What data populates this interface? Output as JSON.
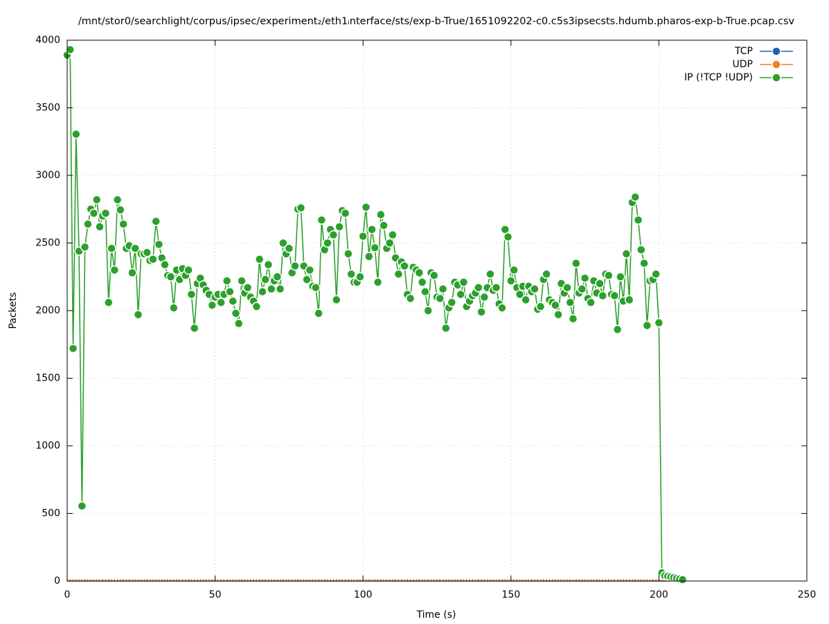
{
  "chart_data": {
    "type": "line",
    "title": "/mnt/stor0/searchlight/corpus/ipsec/experiment₂/eth1ᵢnterface/sts/exp-b-True/1651092202-c0.c5s3ipsecsts.hdumb.pharos-exp-b-True.pcap.csv",
    "x_label": "Time (s)",
    "y_label": "Packets",
    "xlim": [
      0,
      250
    ],
    "xticks": [
      0,
      50,
      100,
      150,
      200,
      250
    ],
    "ylim": [
      0,
      4000
    ],
    "yticks": [
      0,
      500,
      1000,
      1500,
      2000,
      2500,
      3000,
      3500,
      4000
    ],
    "grid": true,
    "legend": "top-right",
    "x": [
      0,
      1,
      2,
      3,
      4,
      5,
      6,
      7,
      8,
      9,
      10,
      11,
      12,
      13,
      14,
      15,
      16,
      17,
      18,
      19,
      20,
      21,
      22,
      23,
      24,
      25,
      26,
      27,
      28,
      29,
      30,
      31,
      32,
      33,
      34,
      35,
      36,
      37,
      38,
      39,
      40,
      41,
      42,
      43,
      44,
      45,
      46,
      47,
      48,
      49,
      50,
      51,
      52,
      53,
      54,
      55,
      56,
      57,
      58,
      59,
      60,
      61,
      62,
      63,
      64,
      65,
      66,
      67,
      68,
      69,
      70,
      71,
      72,
      73,
      74,
      75,
      76,
      77,
      78,
      79,
      80,
      81,
      82,
      83,
      84,
      85,
      86,
      87,
      88,
      89,
      90,
      91,
      92,
      93,
      94,
      95,
      96,
      97,
      98,
      99,
      100,
      101,
      102,
      103,
      104,
      105,
      106,
      107,
      108,
      109,
      110,
      111,
      112,
      113,
      114,
      115,
      116,
      117,
      118,
      119,
      120,
      121,
      122,
      123,
      124,
      125,
      126,
      127,
      128,
      129,
      130,
      131,
      132,
      133,
      134,
      135,
      136,
      137,
      138,
      139,
      140,
      141,
      142,
      143,
      144,
      145,
      146,
      147,
      148,
      149,
      150,
      151,
      152,
      153,
      154,
      155,
      156,
      157,
      158,
      159,
      160,
      161,
      162,
      163,
      164,
      165,
      166,
      167,
      168,
      169,
      170,
      171,
      172,
      173,
      174,
      175,
      176,
      177,
      178,
      179,
      180,
      181,
      182,
      183,
      184,
      185,
      186,
      187,
      188,
      189,
      190,
      191,
      192,
      193,
      194,
      195,
      196,
      197,
      198,
      199,
      200,
      201,
      202,
      203,
      204,
      205,
      206,
      207,
      208
    ],
    "series": [
      {
        "name": "TCP",
        "color": "#1f63b0",
        "values": [
          0,
          0,
          0,
          0,
          0,
          0,
          0,
          0,
          0,
          0,
          0,
          0,
          0,
          0,
          0,
          0,
          0,
          0,
          0,
          0,
          0,
          0,
          0,
          0,
          0,
          0,
          0,
          0,
          0,
          0,
          0,
          0,
          0,
          0,
          0,
          0,
          0,
          0,
          0,
          0,
          0,
          0,
          0,
          0,
          0,
          0,
          0,
          0,
          0,
          0,
          0,
          0,
          0,
          0,
          0,
          0,
          0,
          0,
          0,
          0,
          0,
          0,
          0,
          0,
          0,
          0,
          0,
          0,
          0,
          0,
          0,
          0,
          0,
          0,
          0,
          0,
          0,
          0,
          0,
          0,
          0,
          0,
          0,
          0,
          0,
          0,
          0,
          0,
          0,
          0,
          0,
          0,
          0,
          0,
          0,
          0,
          0,
          0,
          0,
          0,
          0,
          0,
          0,
          0,
          0,
          0,
          0,
          0,
          0,
          0,
          0,
          0,
          0,
          0,
          0,
          0,
          0,
          0,
          0,
          0,
          0,
          0,
          0,
          0,
          0,
          0,
          0,
          0,
          0,
          0,
          0,
          0,
          0,
          0,
          0,
          0,
          0,
          0,
          0,
          0,
          0,
          0,
          0,
          0,
          0,
          0,
          0,
          0,
          0,
          0,
          0,
          0,
          0,
          0,
          0,
          0,
          0,
          0,
          0,
          0,
          0,
          0,
          0,
          0,
          0,
          0,
          0,
          0,
          0,
          0,
          0,
          0,
          0,
          0,
          0,
          0,
          0,
          0,
          0,
          0,
          0,
          0,
          0,
          0,
          0,
          0,
          0,
          0,
          0,
          0,
          0,
          0,
          0,
          0,
          0,
          0,
          0,
          0,
          0,
          0,
          0,
          0,
          0,
          0,
          0,
          0,
          0,
          0,
          0
        ]
      },
      {
        "name": "UDP",
        "color": "#f07f1e",
        "values": [
          0,
          0,
          0,
          0,
          0,
          0,
          0,
          0,
          0,
          0,
          0,
          0,
          0,
          0,
          0,
          0,
          0,
          0,
          0,
          0,
          0,
          0,
          0,
          0,
          0,
          0,
          0,
          0,
          0,
          0,
          0,
          0,
          0,
          0,
          0,
          0,
          0,
          0,
          0,
          0,
          0,
          0,
          0,
          0,
          0,
          0,
          0,
          0,
          0,
          0,
          0,
          0,
          0,
          0,
          0,
          0,
          0,
          0,
          0,
          0,
          0,
          0,
          0,
          0,
          0,
          0,
          0,
          0,
          0,
          0,
          0,
          0,
          0,
          0,
          0,
          0,
          0,
          0,
          0,
          0,
          0,
          0,
          0,
          0,
          0,
          0,
          0,
          0,
          0,
          0,
          0,
          0,
          0,
          0,
          0,
          0,
          0,
          0,
          0,
          0,
          0,
          0,
          0,
          0,
          0,
          0,
          0,
          0,
          0,
          0,
          0,
          0,
          0,
          0,
          0,
          0,
          0,
          0,
          0,
          0,
          0,
          0,
          0,
          0,
          0,
          0,
          0,
          0,
          0,
          0,
          0,
          0,
          0,
          0,
          0,
          0,
          0,
          0,
          0,
          0,
          0,
          0,
          0,
          0,
          0,
          0,
          0,
          0,
          0,
          0,
          0,
          0,
          0,
          0,
          0,
          0,
          0,
          0,
          0,
          0,
          0,
          0,
          0,
          0,
          0,
          0,
          0,
          0,
          0,
          0,
          0,
          0,
          0,
          0,
          0,
          0,
          0,
          0,
          0,
          0,
          0,
          0,
          0,
          0,
          0,
          0,
          0,
          0,
          0,
          0,
          0,
          0,
          0,
          0,
          0,
          0,
          0,
          0,
          0,
          0,
          0,
          0,
          0,
          0,
          0,
          0,
          0,
          0,
          0
        ]
      },
      {
        "name": "IP (!TCP  !UDP)",
        "color": "#2ca02c",
        "values": [
          3890,
          3930,
          1720,
          3305,
          2440,
          555,
          2470,
          2640,
          2750,
          2720,
          2820,
          2620,
          2700,
          2720,
          2060,
          2460,
          2300,
          2820,
          2745,
          2640,
          2460,
          2480,
          2280,
          2460,
          1970,
          2420,
          2420,
          2430,
          2370,
          2380,
          2660,
          2490,
          2390,
          2340,
          2260,
          2250,
          2020,
          2300,
          2230,
          2310,
          2260,
          2300,
          2120,
          1870,
          2200,
          2240,
          2190,
          2150,
          2120,
          2040,
          2100,
          2120,
          2060,
          2120,
          2220,
          2140,
          2070,
          1980,
          1905,
          2220,
          2130,
          2170,
          2100,
          2070,
          2030,
          2380,
          2140,
          2230,
          2340,
          2160,
          2220,
          2250,
          2160,
          2500,
          2420,
          2460,
          2280,
          2330,
          2750,
          2760,
          2330,
          2230,
          2300,
          2180,
          2170,
          1980,
          2670,
          2450,
          2500,
          2600,
          2560,
          2080,
          2620,
          2740,
          2720,
          2420,
          2270,
          2210,
          2210,
          2250,
          2550,
          2765,
          2400,
          2600,
          2465,
          2210,
          2710,
          2630,
          2460,
          2500,
          2560,
          2390,
          2270,
          2360,
          2330,
          2120,
          2090,
          2320,
          2300,
          2280,
          2210,
          2140,
          2000,
          2280,
          2260,
          2100,
          2090,
          2160,
          1870,
          2020,
          2060,
          2210,
          2190,
          2120,
          2210,
          2030,
          2070,
          2110,
          2130,
          2170,
          1990,
          2100,
          2170,
          2270,
          2150,
          2170,
          2050,
          2020,
          2600,
          2545,
          2220,
          2300,
          2170,
          2120,
          2180,
          2080,
          2180,
          2140,
          2160,
          2010,
          2030,
          2230,
          2270,
          2080,
          2060,
          2040,
          1970,
          2200,
          2130,
          2170,
          2060,
          1940,
          2350,
          2130,
          2160,
          2240,
          2090,
          2060,
          2220,
          2130,
          2200,
          2110,
          2270,
          2260,
          2120,
          2110,
          1860,
          2250,
          2070,
          2420,
          2080,
          2800,
          2840,
          2670,
          2450,
          2350,
          1890,
          2220,
          2230,
          2270,
          1910,
          60,
          40,
          35,
          30,
          25,
          20,
          15,
          10
        ]
      }
    ]
  }
}
